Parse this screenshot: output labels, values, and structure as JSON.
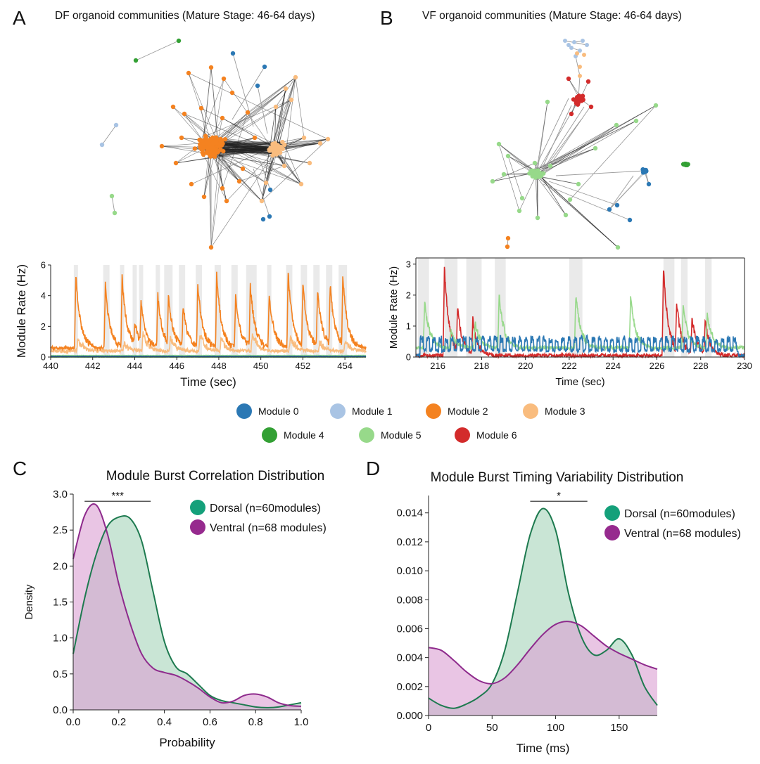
{
  "colors": {
    "m0": "#2b78b4",
    "m1": "#a9c4e4",
    "m2": "#f48220",
    "m3": "#f9bc7e",
    "m4": "#33a034",
    "m5": "#97d98a",
    "m6": "#d32b2b",
    "dorsal_line": "#1d7a4f",
    "dorsal_fill": "#a8d5bb",
    "dorsal_dot": "#14a07a",
    "ventral_line": "#8e2a8c",
    "ventral_fill": "#dba2d4",
    "ventral_dot": "#962a8e",
    "edge": "#555555",
    "shade": "#d8d8d8"
  },
  "panels": {
    "a": {
      "label": "A",
      "title": "DF organoid communities (Mature Stage: 46-64 days)"
    },
    "b": {
      "label": "B",
      "title": "VF organoid communities (Mature Stage: 46-64 days)"
    },
    "c": {
      "label": "C"
    },
    "d": {
      "label": "D"
    }
  },
  "legend_modules": [
    {
      "name": "Module 0",
      "color": "#2b78b4"
    },
    {
      "name": "Module 1",
      "color": "#a9c4e4"
    },
    {
      "name": "Module 2",
      "color": "#f48220"
    },
    {
      "name": "Module 3",
      "color": "#f9bc7e"
    },
    {
      "name": "Module 4",
      "color": "#33a034"
    },
    {
      "name": "Module 5",
      "color": "#97d98a"
    },
    {
      "name": "Module 6",
      "color": "#d32b2b"
    }
  ],
  "chart_data": [
    {
      "id": "a_rate",
      "type": "line",
      "title": "",
      "xlabel": "Time (sec)",
      "ylabel": "Module Rate (Hz)",
      "xlim": [
        440,
        455
      ],
      "ylim": [
        0,
        6
      ],
      "xticks": [
        440,
        442,
        444,
        446,
        448,
        450,
        452,
        454
      ],
      "yticks": [
        0,
        2,
        4,
        6
      ],
      "shaded_windows": [
        [
          441.1,
          441.3
        ],
        [
          442.5,
          442.8
        ],
        [
          443.3,
          443.5
        ],
        [
          443.9,
          444.1
        ],
        [
          444.2,
          444.4
        ],
        [
          445.0,
          445.2
        ],
        [
          445.4,
          445.8
        ],
        [
          446.1,
          446.4
        ],
        [
          446.9,
          447.2
        ],
        [
          447.8,
          448.1
        ],
        [
          448.6,
          448.9
        ],
        [
          449.3,
          449.8
        ],
        [
          450.3,
          450.5
        ],
        [
          451.2,
          451.5
        ],
        [
          451.9,
          452.2
        ],
        [
          452.5,
          452.8
        ],
        [
          453.1,
          453.4
        ],
        [
          453.7,
          454.1
        ]
      ],
      "series": [
        {
          "name": "Module 2",
          "color": "#f48220",
          "baseline": 0.6,
          "peaks": [
            [
              441.2,
              5.3
            ],
            [
              442.6,
              4.7
            ],
            [
              443.4,
              5.2
            ],
            [
              444.0,
              2.3
            ],
            [
              444.3,
              3.6
            ],
            [
              445.1,
              4.0
            ],
            [
              445.6,
              4.2
            ],
            [
              446.3,
              3.3
            ],
            [
              447.0,
              4.8
            ],
            [
              447.9,
              5.4
            ],
            [
              448.8,
              4.0
            ],
            [
              449.5,
              4.7
            ],
            [
              450.4,
              4.1
            ],
            [
              451.3,
              5.5
            ],
            [
              452.0,
              4.8
            ],
            [
              452.7,
              4.4
            ],
            [
              453.3,
              4.7
            ],
            [
              453.9,
              5.2
            ]
          ]
        },
        {
          "name": "Module 3",
          "color": "#f9bc7e",
          "baseline": 0.4,
          "peaks": [
            [
              441.3,
              1.2
            ],
            [
              443.5,
              1.0
            ],
            [
              444.4,
              1.6
            ],
            [
              445.7,
              1.3
            ],
            [
              447.1,
              1.6
            ],
            [
              448.1,
              1.2
            ],
            [
              449.6,
              1.7
            ],
            [
              451.4,
              1.4
            ],
            [
              452.8,
              1.0
            ],
            [
              454.0,
              1.1
            ]
          ]
        },
        {
          "name": "Module 0",
          "color": "#2b78b4",
          "baseline": 0.05,
          "peaks": []
        },
        {
          "name": "Module 5",
          "color": "#97d98a",
          "baseline": 0.1,
          "peaks": []
        },
        {
          "name": "Module 4",
          "color": "#33a034",
          "baseline": 0.0,
          "peaks": []
        }
      ]
    },
    {
      "id": "b_rate",
      "type": "line",
      "title": "",
      "xlabel": "Time (sec)",
      "ylabel": "Module Rate (Hz)",
      "xlim": [
        215,
        230
      ],
      "ylim": [
        0,
        3.2
      ],
      "xticks": [
        216,
        218,
        220,
        222,
        224,
        226,
        228,
        230
      ],
      "yticks": [
        0,
        1,
        2,
        3
      ],
      "shaded_windows": [
        [
          215.1,
          215.6
        ],
        [
          216.3,
          216.9
        ],
        [
          217.3,
          218.0
        ],
        [
          218.6,
          219.1
        ],
        [
          222.0,
          222.6
        ],
        [
          226.3,
          226.8
        ],
        [
          227.1,
          227.4
        ],
        [
          228.2,
          228.5
        ]
      ],
      "series": [
        {
          "name": "Module 0",
          "color": "#2b78b4",
          "baseline": 0.35,
          "oscillating": true,
          "osc_from": 215.2,
          "osc_to": 229.7,
          "osc_amp": 0.22,
          "osc_period": 0.28
        },
        {
          "name": "Module 5",
          "color": "#97d98a",
          "baseline": 0.3,
          "peaks": [
            [
              215.4,
              1.8
            ],
            [
              216.6,
              0.9
            ],
            [
              217.7,
              1.1
            ],
            [
              218.8,
              2.0
            ],
            [
              222.3,
              2.0
            ],
            [
              224.8,
              2.0
            ],
            [
              227.2,
              1.6
            ],
            [
              228.3,
              1.4
            ]
          ]
        },
        {
          "name": "Module 6",
          "color": "#d32b2b",
          "baseline": 0.05,
          "peaks": [
            [
              216.3,
              2.9
            ],
            [
              216.9,
              1.6
            ],
            [
              217.6,
              1.2
            ],
            [
              226.3,
              2.9
            ],
            [
              226.9,
              1.8
            ],
            [
              227.6,
              1.3
            ],
            [
              228.2,
              1.2
            ]
          ]
        }
      ]
    },
    {
      "id": "c_kde",
      "type": "area",
      "title": "Module Burst Correlation Distribution",
      "xlabel": "Probability",
      "ylabel": "Density",
      "xlim": [
        0.0,
        1.0
      ],
      "ylim": [
        0.0,
        3.0
      ],
      "xticks": [
        0.0,
        0.2,
        0.4,
        0.6,
        0.8,
        1.0
      ],
      "yticks": [
        0.0,
        0.5,
        1.0,
        1.5,
        2.0,
        2.5,
        3.0
      ],
      "significance": {
        "text": "***",
        "x1": 0.05,
        "x2": 0.34,
        "y": 2.9
      },
      "x": [
        0.0,
        0.05,
        0.1,
        0.15,
        0.2,
        0.25,
        0.3,
        0.35,
        0.4,
        0.45,
        0.5,
        0.55,
        0.6,
        0.65,
        0.7,
        0.75,
        0.8,
        0.85,
        0.9,
        0.95,
        1.0
      ],
      "series": [
        {
          "name": "Dorsal (n=60modules)",
          "legend": "Dorsal (n=60modules)",
          "line": "#1d7a4f",
          "fill": "#a8d5bb",
          "values": [
            0.78,
            1.55,
            2.15,
            2.55,
            2.68,
            2.66,
            2.35,
            1.65,
            0.95,
            0.6,
            0.5,
            0.35,
            0.2,
            0.13,
            0.1,
            0.07,
            0.04,
            0.03,
            0.04,
            0.07,
            0.1
          ]
        },
        {
          "name": "Ventral (n=68 modules)",
          "legend": "Ventral (n=68 modules)",
          "line": "#8e2a8c",
          "fill": "#dba2d4",
          "values": [
            2.1,
            2.7,
            2.85,
            2.45,
            1.75,
            1.2,
            0.78,
            0.58,
            0.52,
            0.48,
            0.4,
            0.3,
            0.18,
            0.1,
            0.12,
            0.2,
            0.22,
            0.18,
            0.1,
            0.06,
            0.05
          ]
        }
      ]
    },
    {
      "id": "d_kde",
      "type": "area",
      "title": "Module Burst Timing Variability Distribution",
      "xlabel": "Time (ms)",
      "ylabel": "",
      "xlim": [
        0,
        180
      ],
      "ylim": [
        0.0,
        0.0152
      ],
      "xticks": [
        0,
        50,
        100,
        150
      ],
      "yticks": [
        0.0,
        0.002,
        0.004,
        0.006,
        0.008,
        0.01,
        0.012,
        0.014
      ],
      "ytick_labels": [
        "0.000",
        "0.002",
        "0.004",
        "0.006",
        "0.008",
        "0.010",
        "0.012",
        "0.014"
      ],
      "significance": {
        "text": "*",
        "x1": 80,
        "x2": 125,
        "y": 0.0148
      },
      "x": [
        0,
        10,
        20,
        30,
        40,
        50,
        60,
        70,
        80,
        90,
        100,
        110,
        120,
        130,
        140,
        150,
        160,
        170,
        180
      ],
      "series": [
        {
          "name": "Dorsal (n=60modules)",
          "legend": "Dorsal (n=60modules)",
          "line": "#1d7a4f",
          "fill": "#a8d5bb",
          "values": [
            0.0012,
            0.0007,
            0.0005,
            0.0008,
            0.0013,
            0.0022,
            0.0045,
            0.0085,
            0.0125,
            0.0143,
            0.0128,
            0.0085,
            0.0055,
            0.0042,
            0.0045,
            0.0053,
            0.0042,
            0.002,
            0.0007
          ]
        },
        {
          "name": "Ventral (n=68 modules)",
          "legend": "Ventral (n=68 modules)",
          "line": "#8e2a8c",
          "fill": "#dba2d4",
          "values": [
            0.0047,
            0.0045,
            0.0038,
            0.003,
            0.0024,
            0.0022,
            0.0026,
            0.0035,
            0.0046,
            0.0056,
            0.0063,
            0.0065,
            0.0062,
            0.0055,
            0.0048,
            0.0043,
            0.0039,
            0.0035,
            0.0032
          ]
        }
      ]
    }
  ]
}
